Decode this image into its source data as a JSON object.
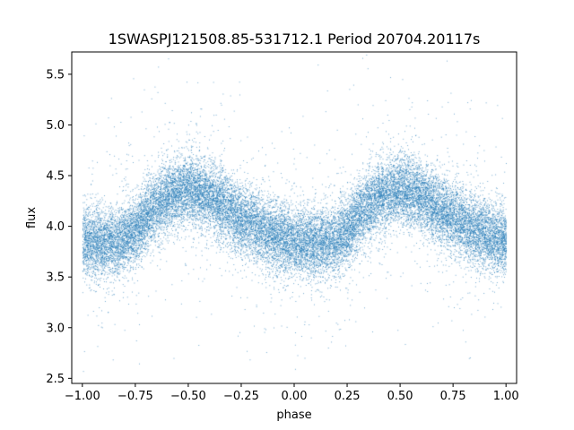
{
  "chart_data": {
    "type": "scatter",
    "title": "1SWASPJ121508.85-531712.1 Period 20704.20117s",
    "xlabel": "phase",
    "ylabel": "flux",
    "xlim": [
      -1.05,
      1.05
    ],
    "ylim": [
      2.45,
      5.72
    ],
    "grid": false,
    "marker_color": "#1f77b4",
    "x_ticks": [
      -1.0,
      -0.75,
      -0.5,
      -0.25,
      0.0,
      0.25,
      0.5,
      0.75,
      1.0
    ],
    "x_tick_labels": [
      "−1.00",
      "−0.75",
      "−0.50",
      "−0.25",
      "0.00",
      "0.25",
      "0.50",
      "0.75",
      "1.00"
    ],
    "y_ticks": [
      2.5,
      3.0,
      3.5,
      4.0,
      4.5,
      5.0,
      5.5
    ],
    "y_tick_labels": [
      "2.5",
      "3.0",
      "3.5",
      "4.0",
      "4.5",
      "5.0",
      "5.5"
    ],
    "trend": {
      "phase": [
        -1.0,
        -0.9,
        -0.8,
        -0.75,
        -0.7,
        -0.6,
        -0.5,
        -0.4,
        -0.3,
        -0.2,
        -0.1,
        0.0,
        0.1,
        0.2,
        0.25,
        0.3,
        0.4,
        0.5,
        0.6,
        0.7,
        0.8,
        0.9,
        1.0
      ],
      "flux": [
        3.85,
        3.84,
        3.87,
        3.95,
        4.1,
        4.3,
        4.37,
        4.3,
        4.15,
        4.02,
        3.92,
        3.84,
        3.84,
        3.87,
        3.95,
        4.1,
        4.3,
        4.37,
        4.3,
        4.15,
        4.02,
        3.92,
        3.85
      ]
    },
    "scatter_sigma": 0.17,
    "n_points": 26000
  }
}
